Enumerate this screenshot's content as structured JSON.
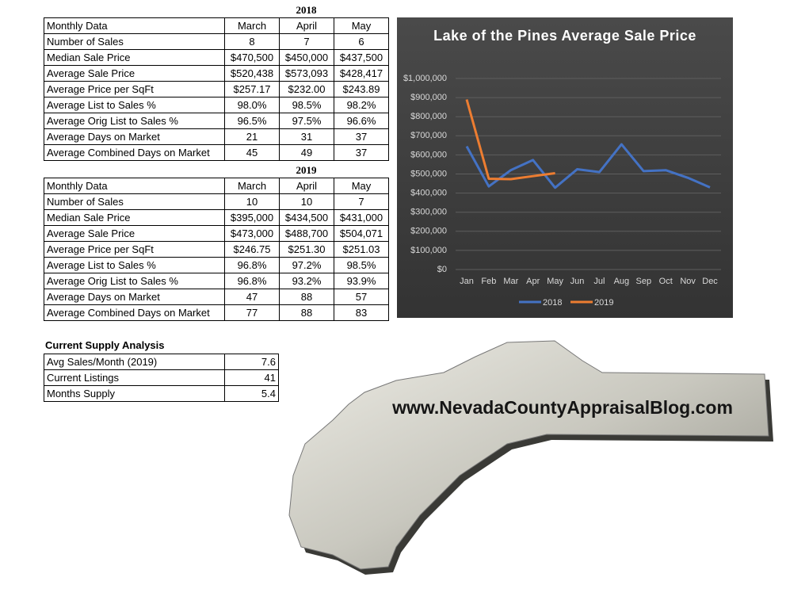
{
  "tables": [
    {
      "title": "2018",
      "header": [
        "Monthly Data",
        "March",
        "April",
        "May"
      ],
      "rows": [
        [
          "Number of Sales",
          "8",
          "7",
          "6"
        ],
        [
          "Median Sale Price",
          "$470,500",
          "$450,000",
          "$437,500"
        ],
        [
          "Average Sale Price",
          "$520,438",
          "$573,093",
          "$428,417"
        ],
        [
          "Average Price per SqFt",
          "$257.17",
          "$232.00",
          "$243.89"
        ],
        [
          "Average List to Sales %",
          "98.0%",
          "98.5%",
          "98.2%"
        ],
        [
          "Average Orig List to Sales %",
          "96.5%",
          "97.5%",
          "96.6%"
        ],
        [
          "Average Days on Market",
          "21",
          "31",
          "37"
        ],
        [
          "Average Combined Days on Market",
          "45",
          "49",
          "37"
        ]
      ]
    },
    {
      "title": "2019",
      "header": [
        "Monthly Data",
        "March",
        "April",
        "May"
      ],
      "rows": [
        [
          "Number of Sales",
          "10",
          "10",
          "7"
        ],
        [
          "Median Sale Price",
          "$395,000",
          "$434,500",
          "$431,000"
        ],
        [
          "Average Sale Price",
          "$473,000",
          "$488,700",
          "$504,071"
        ],
        [
          "Average Price per SqFt",
          "$246.75",
          "$251.30",
          "$251.03"
        ],
        [
          "Average List to Sales %",
          "96.8%",
          "97.2%",
          "98.5%"
        ],
        [
          "Average Orig List to Sales %",
          "96.8%",
          "93.2%",
          "93.9%"
        ],
        [
          "Average Days on Market",
          "47",
          "88",
          "57"
        ],
        [
          "Average Combined Days on Market",
          "77",
          "88",
          "83"
        ]
      ]
    }
  ],
  "supply": {
    "title": "Current Supply Analysis",
    "rows": [
      [
        "Avg Sales/Month (2019)",
        "7.6"
      ],
      [
        "Current Listings",
        "41"
      ],
      [
        "Months Supply",
        "5.4"
      ]
    ]
  },
  "logo": {
    "text": "www.NevadaCountyAppraisalBlog.com"
  },
  "chart_data": {
    "type": "line",
    "title": "Lake of the Pines Average Sale Price",
    "categories": [
      "Jan",
      "Feb",
      "Mar",
      "Apr",
      "May",
      "Jun",
      "Jul",
      "Aug",
      "Sep",
      "Oct",
      "Nov",
      "Dec"
    ],
    "series": [
      {
        "name": "2018",
        "color": "#4472c4",
        "values": [
          645000,
          435000,
          520438,
          573093,
          428417,
          525000,
          510000,
          655000,
          515000,
          520000,
          480000,
          430000
        ]
      },
      {
        "name": "2019",
        "color": "#ed7d31",
        "values": [
          890000,
          475000,
          473000,
          488700,
          504071,
          null,
          null,
          null,
          null,
          null,
          null,
          null
        ]
      }
    ],
    "ylim": [
      0,
      1000000
    ],
    "yticks": [
      {
        "value": 0,
        "label": "$0"
      },
      {
        "value": 100000,
        "label": "$100,000"
      },
      {
        "value": 200000,
        "label": "$200,000"
      },
      {
        "value": 300000,
        "label": "$300,000"
      },
      {
        "value": 400000,
        "label": "$400,000"
      },
      {
        "value": 500000,
        "label": "$500,000"
      },
      {
        "value": 600000,
        "label": "$600,000"
      },
      {
        "value": 700000,
        "label": "$700,000"
      },
      {
        "value": 800000,
        "label": "$800,000"
      },
      {
        "value": 900000,
        "label": "$900,000"
      },
      {
        "value": 1000000,
        "label": "$1,000,000"
      }
    ],
    "grid": true,
    "legend": "bottom"
  }
}
